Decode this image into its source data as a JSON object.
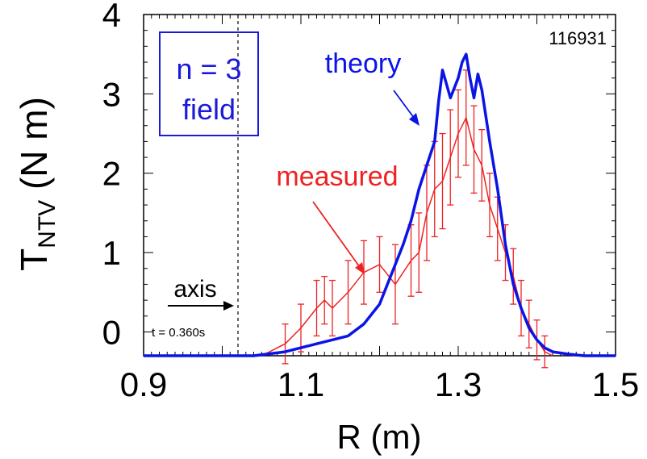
{
  "chart_data": {
    "type": "line",
    "shot_label": "116931",
    "xlabel": "R (m)",
    "ylabel_main": "T",
    "ylabel_sub": "NTV",
    "ylabel_unit": " (N m)",
    "xlim": [
      0.9,
      1.5
    ],
    "ylim": [
      -0.3,
      4.0
    ],
    "x_ticks": [
      0.9,
      1.1,
      1.3,
      1.5
    ],
    "x_tick_labels": [
      "0.9",
      "1.1",
      "1.3",
      "1.5"
    ],
    "y_ticks": [
      0,
      1,
      2,
      3,
      4
    ],
    "y_tick_labels": [
      "0",
      "1",
      "2",
      "3",
      "4"
    ],
    "axis_position": 1.02,
    "box_text": [
      "n = 3",
      "field"
    ],
    "axis_text": "axis",
    "time_text": "t = 0.360s",
    "colors": {
      "theory": "#0a14e6",
      "measured": "#ee2222",
      "box": "#1a1ad8"
    },
    "series": [
      {
        "name": "theory",
        "x": [
          0.9,
          1.0,
          1.04,
          1.08,
          1.12,
          1.14,
          1.16,
          1.18,
          1.2,
          1.21,
          1.22,
          1.23,
          1.24,
          1.25,
          1.26,
          1.27,
          1.275,
          1.28,
          1.29,
          1.3,
          1.305,
          1.31,
          1.315,
          1.32,
          1.325,
          1.33,
          1.34,
          1.35,
          1.36,
          1.37,
          1.38,
          1.39,
          1.4,
          1.41,
          1.42,
          1.44,
          1.46,
          1.5
        ],
        "values": [
          -0.3,
          -0.3,
          -0.3,
          -0.25,
          -0.15,
          -0.1,
          -0.05,
          0.1,
          0.35,
          0.6,
          0.85,
          1.1,
          1.4,
          1.8,
          2.1,
          2.4,
          2.9,
          3.3,
          2.95,
          3.2,
          3.4,
          3.5,
          3.2,
          2.95,
          3.25,
          3.05,
          2.4,
          1.8,
          1.1,
          0.6,
          0.3,
          0.05,
          -0.1,
          -0.2,
          -0.25,
          -0.28,
          -0.3,
          -0.3
        ]
      },
      {
        "name": "measured",
        "x": [
          0.9,
          1.05,
          1.08,
          1.1,
          1.12,
          1.13,
          1.14,
          1.16,
          1.18,
          1.2,
          1.22,
          1.24,
          1.25,
          1.26,
          1.27,
          1.28,
          1.29,
          1.3,
          1.31,
          1.32,
          1.33,
          1.34,
          1.35,
          1.36,
          1.37,
          1.38,
          1.39,
          1.4,
          1.41,
          1.42
        ],
        "values": [
          -0.3,
          -0.3,
          -0.15,
          0.05,
          0.3,
          0.4,
          0.3,
          0.5,
          0.75,
          0.85,
          0.6,
          0.9,
          1.0,
          1.5,
          1.8,
          1.9,
          2.2,
          2.5,
          2.7,
          2.3,
          2.1,
          1.6,
          1.3,
          1.0,
          0.7,
          0.3,
          0.1,
          -0.1,
          -0.25,
          -0.3
        ],
        "errors": [
          0,
          0,
          0.25,
          0.3,
          0.35,
          0.3,
          0.35,
          0.4,
          0.4,
          0.35,
          0.5,
          0.45,
          0.5,
          0.6,
          0.6,
          0.6,
          0.6,
          0.55,
          0.6,
          0.55,
          0.45,
          0.4,
          0.4,
          0.35,
          0.35,
          0.35,
          0.3,
          0.25,
          0.2,
          0
        ]
      }
    ],
    "annotations": [
      {
        "text": "theory",
        "color": "#0a14e6"
      },
      {
        "text": "measured",
        "color": "#ee2222"
      }
    ]
  }
}
